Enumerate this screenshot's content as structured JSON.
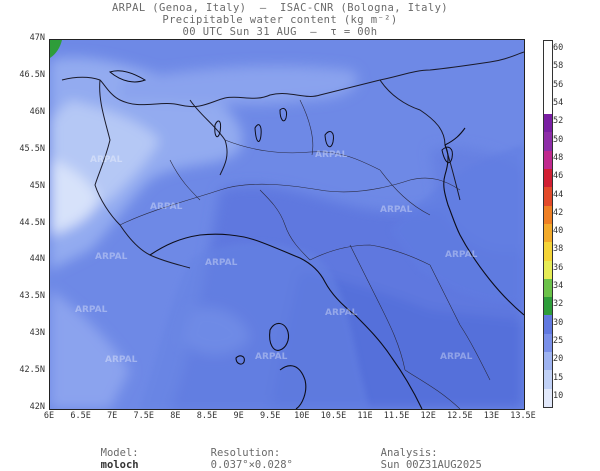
{
  "header": {
    "line1": "ARPAL (Genoa, Italy)  –  ISAC-CNR (Bologna, Italy)",
    "line2": "Precipitable water content (kg m⁻²)",
    "line3": "00 UTC Sun 31 AUG  –  τ = 00h"
  },
  "map": {
    "lat_labels": [
      "47N",
      "46.5N",
      "46N",
      "45.5N",
      "45N",
      "44.5N",
      "44N",
      "43.5N",
      "43N",
      "42.5N",
      "42N"
    ],
    "lon_labels": [
      "6E",
      "6.5E",
      "7E",
      "7.5E",
      "8E",
      "8.5E",
      "9E",
      "9.5E",
      "10E",
      "10.5E",
      "11E",
      "11.5E",
      "12E",
      "12.5E",
      "13E",
      "13.5E"
    ],
    "watermark": "ARPAL",
    "colors": {
      "background_field": "#6e89e6",
      "moist_field": "#5a72dd",
      "dry_field": "#a9bff4",
      "very_dry": "#dfe8fb"
    }
  },
  "colorbar": {
    "labels": [
      "60",
      "58",
      "56",
      "54",
      "52",
      "50",
      "48",
      "46",
      "44",
      "42",
      "40",
      "38",
      "36",
      "34",
      "32",
      "30",
      "25",
      "20",
      "15",
      "10"
    ],
    "colors": [
      "#ffffff",
      "#ffffff",
      "#ffffff",
      "#ffffff",
      "#7a1fa3",
      "#8e2ea8",
      "#c02a8e",
      "#d11f33",
      "#e24a2a",
      "#ee7f24",
      "#f2aa2b",
      "#f4d438",
      "#e6ec56",
      "#6cc24a",
      "#2e9d3a",
      "#6179e0",
      "#7a90e9",
      "#9eb3f1",
      "#c1d1f6",
      "#e2e9fb"
    ]
  },
  "footer": {
    "model_label": "Model:",
    "model_value": "moloch",
    "resolution_label": "Resolution:",
    "resolution_value": "0.037°×0.028°",
    "analysis_label": "Analysis:",
    "analysis_value": "Sun 00Z31AUG2025"
  }
}
